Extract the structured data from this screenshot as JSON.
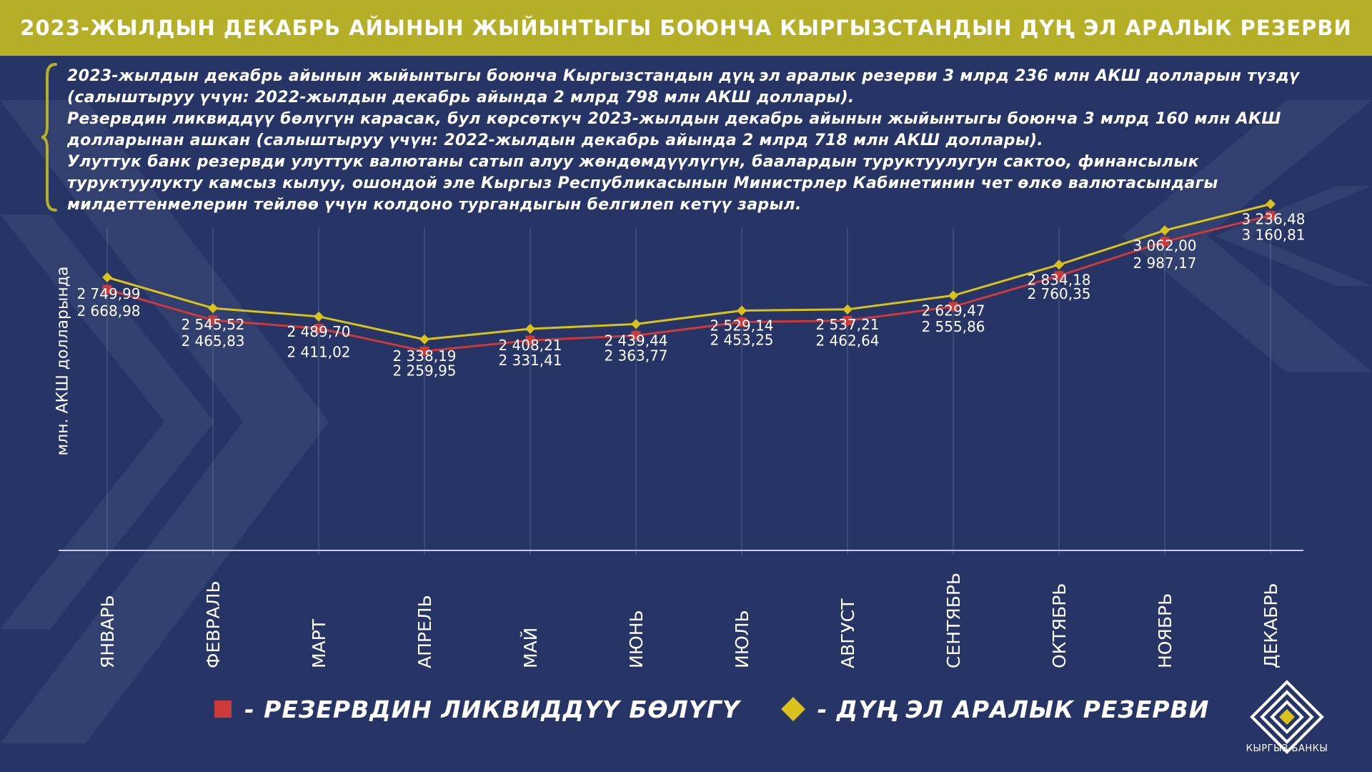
{
  "title": "2023-ЖЫЛДЫН ДЕКАБРЬ АЙЫНЫН ЖЫЙЫНТЫГЫ БОЮНЧА КЫРГЫЗСТАНДЫН ДҮҢ ЭЛ АРАЛЫК РЕЗЕРВИ",
  "intro": {
    "p1": "2023-жылдын декабрь айынын жыйынтыгы боюнча Кыргызстандын дүң эл аралык резерви 3 млрд 236 млн АКШ долларын түздү (салыштыруу үчүн: 2022-жылдын декабрь айында 2 млрд 798 млн  АКШ доллары).",
    "p2": "Резервдин ликвиддүү бөлүгүн карасак, бул көрсөткүч 2023-жылдын декабрь айынын жыйынтыгы боюнча 3 млрд 160 млн АКШ долларынан ашкан (салыштыруу үчүн: 2022-жылдын декабрь айында 2 млрд 718 млн  АКШ доллары).",
    "p3": "Улуттук банк резервди улуттук валютаны сатып алуу жөндөмдүүлүгүн, баалардын туруктуулугун сактоо, финансылык туруктуулукту камсыз кылуу, ошондой эле Кыргыз Республикасынын Министрлер Кабинетинин чет өлкө валютасындагы милдеттенмелерин тейлөө үчүн колдоно тургандыгын белгилеп кетүү зарыл."
  },
  "chart_data": {
    "type": "line",
    "ylabel": "млн. АКШ долларында",
    "categories": [
      "ЯНВАРЬ",
      "ФЕВРАЛЬ",
      "МАРТ",
      "АПРЕЛЬ",
      "МАЙ",
      "ИЮНЬ",
      "ИЮЛЬ",
      "АВГУСТ",
      "СЕНТЯБРЬ",
      "ОКТЯБРЬ",
      "НОЯБРЬ",
      "ДЕКАБРЬ"
    ],
    "series": [
      {
        "name": "- ДҮҢ ЭЛ АРАЛЫК РЕЗЕРВИ",
        "marker": "diamond",
        "color": "#d8c21b",
        "values": [
          2749.99,
          2545.52,
          2489.7,
          2338.19,
          2408.21,
          2439.44,
          2529.14,
          2537.21,
          2629.47,
          2834.18,
          3062.0,
          3236.48
        ],
        "labels": [
          "2 749,99",
          "2 545,52",
          "2 489,70",
          "2 338,19",
          "2 408,21",
          "2 439,44",
          "2 529,14",
          "2 537,21",
          "2 629,47",
          "2 834,18",
          "3 062,00",
          "3 236,48"
        ]
      },
      {
        "name": "- РЕЗЕРВДИН ЛИКВИДДҮҮ БӨЛҮГҮ",
        "marker": "square",
        "color": "#cc3b3a",
        "values": [
          2668.98,
          2465.83,
          2411.02,
          2259.95,
          2331.41,
          2363.77,
          2453.25,
          2462.64,
          2555.86,
          2760.35,
          2987.17,
          3160.81
        ],
        "labels": [
          "2 668,98",
          "2 465,83",
          "2 411,02",
          "2 259,95",
          "2 331,41",
          "2 363,77",
          "2 453,25",
          "2 462,64",
          "2 555,86",
          "2 760,35",
          "2 987,17",
          "3 160,81"
        ]
      }
    ],
    "grid": "vertical",
    "legend": "bottom"
  },
  "logo_text": "КЫРГЫЗ БАНКЫ",
  "colors": {
    "background": "#263566",
    "title_bar": "#b5ae27",
    "accent_gold": "#d8c21b",
    "accent_red": "#cc3b3a"
  }
}
